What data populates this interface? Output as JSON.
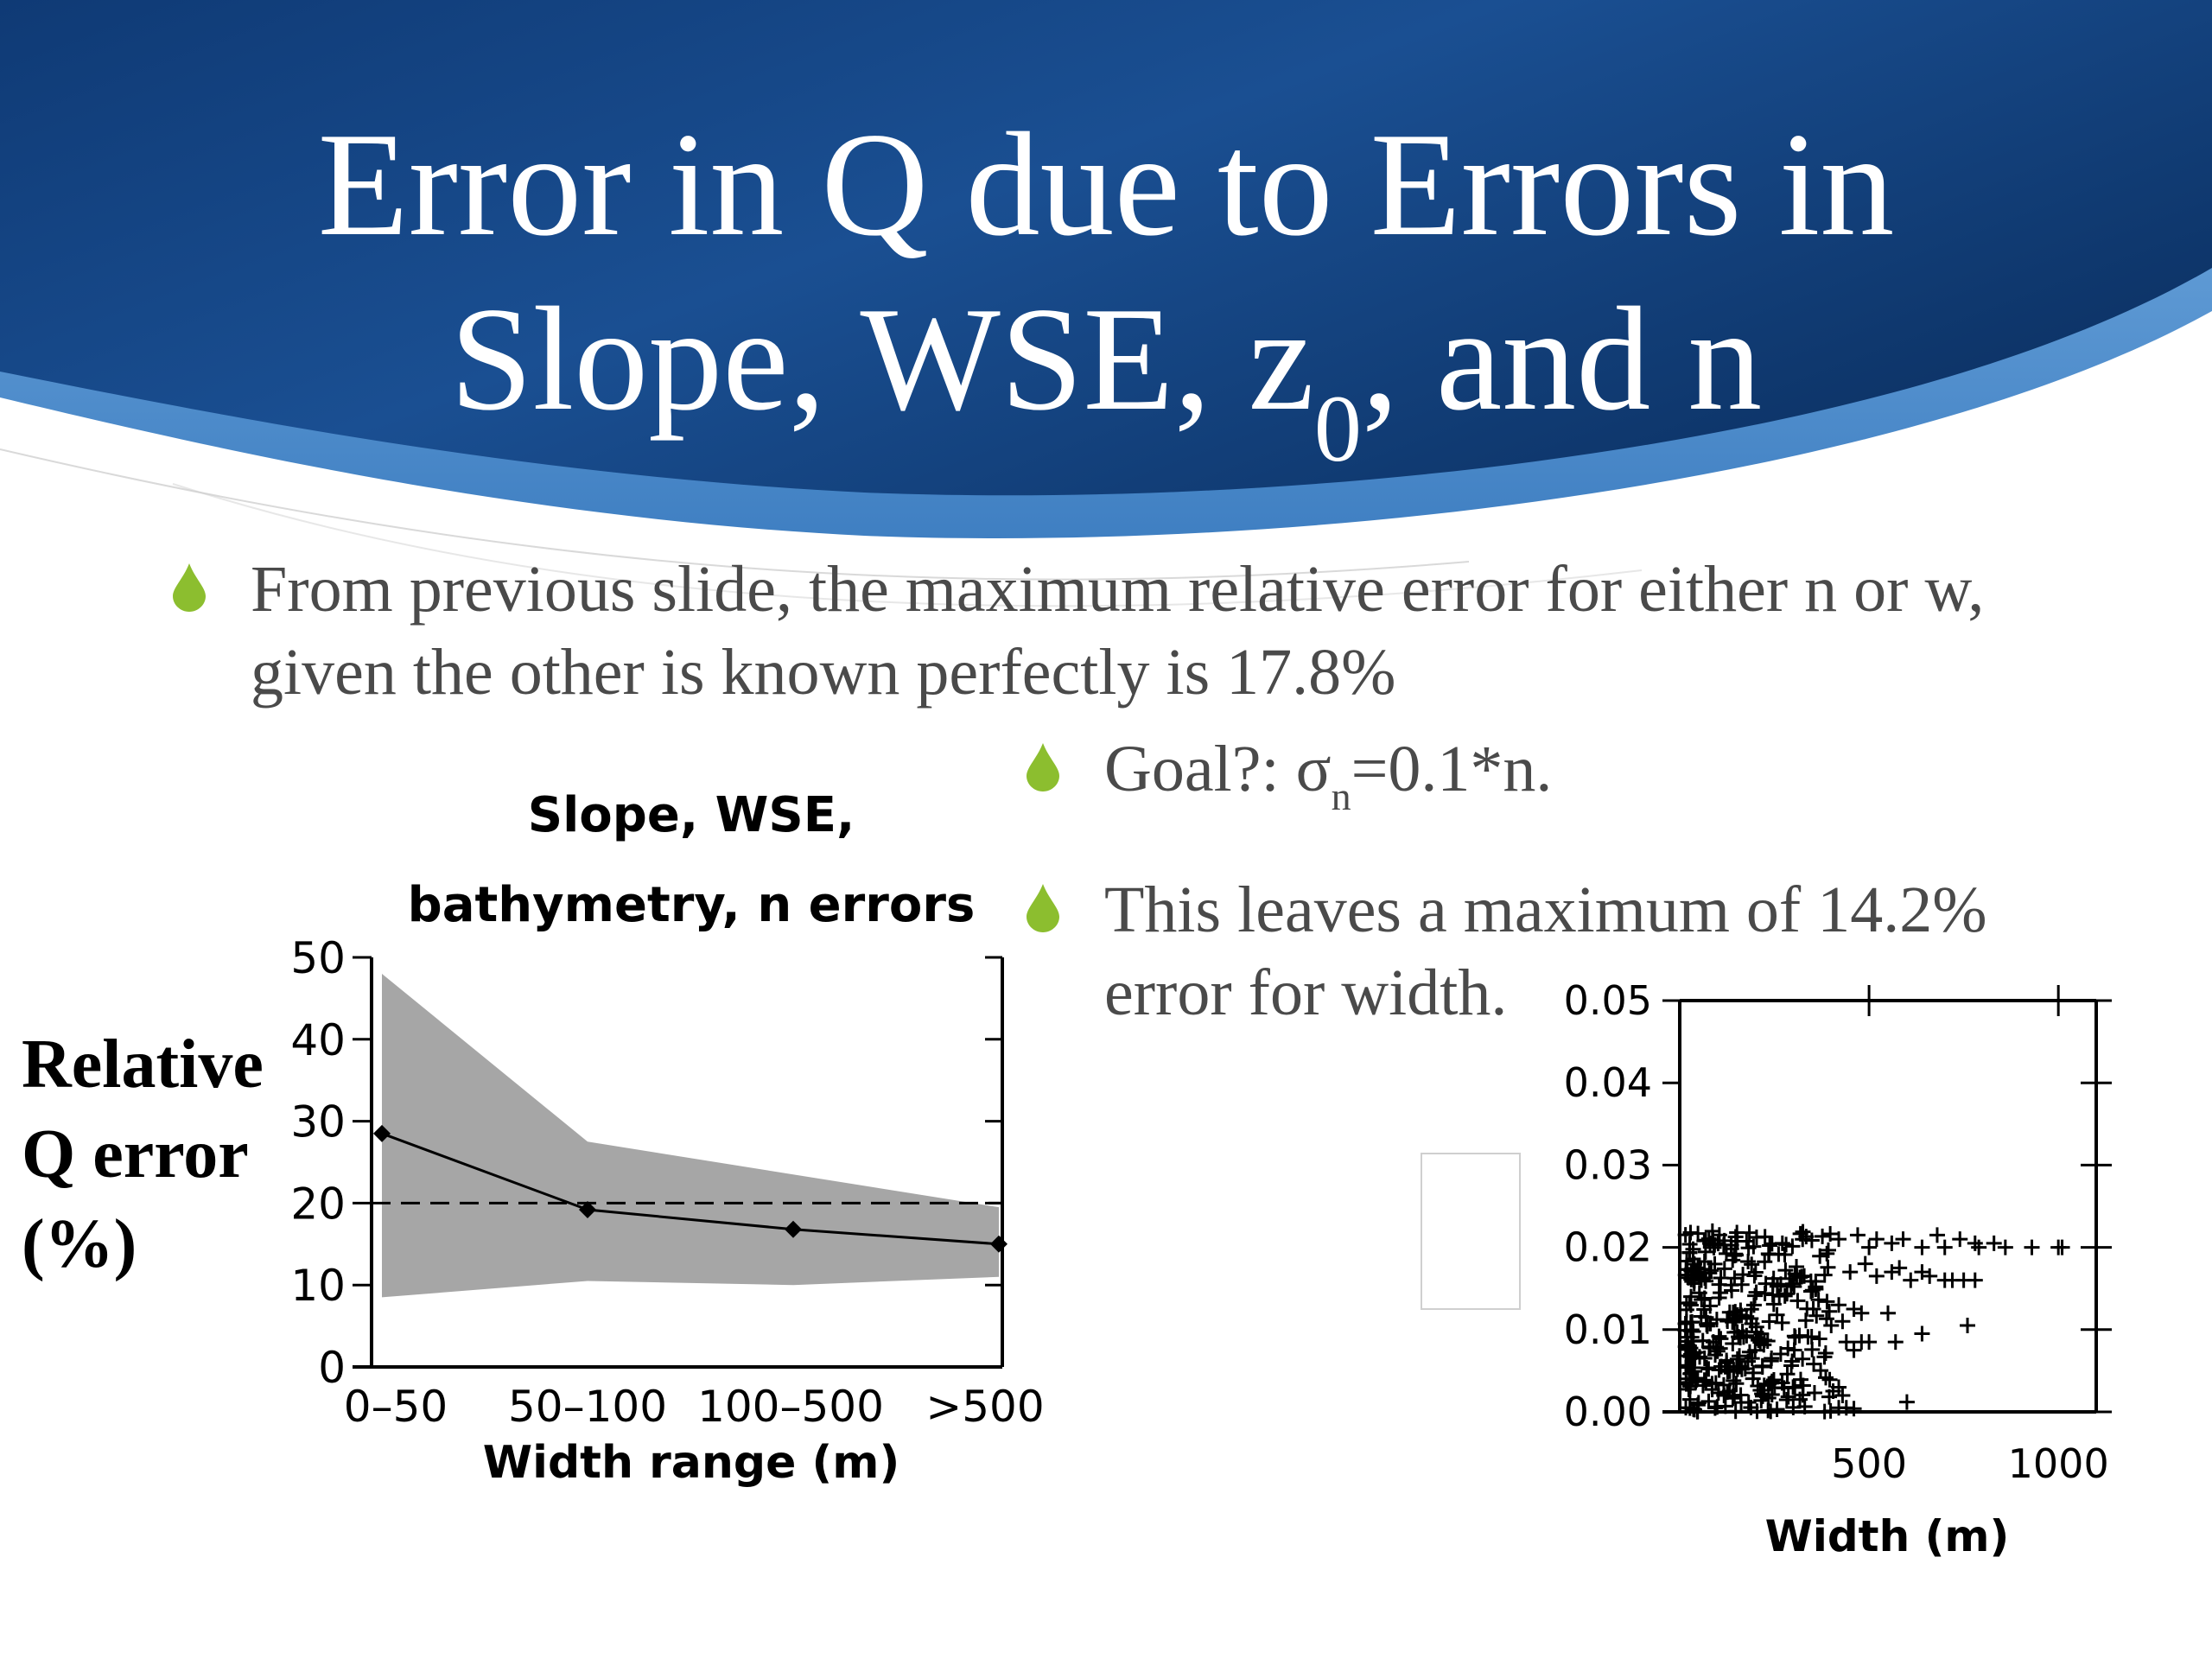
{
  "slide": {
    "title_line1": "Error in Q due to Errors in",
    "title_line2_prefix": "Slope, WSE, z",
    "title_line2_sub": "0",
    "title_line2_suffix": ", and n"
  },
  "bullets": {
    "b1_line1": "From previous slide, the maximum relative error for either n or w,",
    "b1_line2": "given the other is known perfectly is 17.8%",
    "b2_prefix": "Goal?: σ",
    "b2_sub": "n",
    "b2_suffix": "=0.1*n.",
    "b3_line1": "This leaves a maximum of 14.2%",
    "b3_line2": "error for width."
  },
  "left_label": {
    "line1": "Relative",
    "line2": "Q error",
    "line3": "(%)"
  },
  "colors": {
    "accent_bullet": "#8cbe2f",
    "banner_dark": "#133f7e",
    "banner_light": "#5a9bd6",
    "band_gray": "#a6a6a6"
  },
  "chart_data": [
    {
      "type": "line",
      "title_line1": "Slope, WSE,",
      "title_line2": "bathymetry, n errors",
      "xlabel": "Width range (m)",
      "ylabel": "",
      "categories": [
        "0–50",
        "50–100",
        "100–500",
        ">500"
      ],
      "ylim": [
        0,
        50
      ],
      "yticks": [
        0,
        10,
        20,
        30,
        40,
        50
      ],
      "series": [
        {
          "values": [
            28.5,
            19.2,
            16.8,
            15.0
          ]
        }
      ],
      "band": {
        "upper": [
          48,
          27.5,
          23.5,
          19.5
        ],
        "lower": [
          8.5,
          10.5,
          10,
          11
        ]
      },
      "reference_line": {
        "y": 20,
        "style": "dashed"
      },
      "grid": false
    },
    {
      "type": "scatter",
      "xlabel": "Width (m)",
      "ylabel": "",
      "xlim": [
        0,
        1100
      ],
      "ylim": [
        0,
        0.05
      ],
      "xticks": [
        500,
        1000
      ],
      "yticks": [
        "0.00",
        "0.01",
        "0.02",
        "0.03",
        "0.04",
        "0.05"
      ],
      "points": [
        [
          420,
          0.021
        ],
        [
          470,
          0.0215
        ],
        [
          500,
          0.02
        ],
        [
          520,
          0.021
        ],
        [
          560,
          0.0205
        ],
        [
          590,
          0.021
        ],
        [
          640,
          0.02
        ],
        [
          680,
          0.0215
        ],
        [
          700,
          0.02
        ],
        [
          740,
          0.021
        ],
        [
          780,
          0.0205
        ],
        [
          790,
          0.02
        ],
        [
          830,
          0.0205
        ],
        [
          860,
          0.02
        ],
        [
          930,
          0.02
        ],
        [
          1000,
          0.02
        ],
        [
          1010,
          0.02
        ],
        [
          450,
          0.017
        ],
        [
          490,
          0.018
        ],
        [
          520,
          0.0165
        ],
        [
          560,
          0.017
        ],
        [
          580,
          0.0175
        ],
        [
          610,
          0.016
        ],
        [
          640,
          0.017
        ],
        [
          660,
          0.0165
        ],
        [
          700,
          0.016
        ],
        [
          720,
          0.016
        ],
        [
          750,
          0.016
        ],
        [
          780,
          0.016
        ],
        [
          420,
          0.013
        ],
        [
          460,
          0.0125
        ],
        [
          480,
          0.012
        ],
        [
          500,
          0.0085
        ],
        [
          550,
          0.012
        ],
        [
          570,
          0.0085
        ],
        [
          640,
          0.0095
        ],
        [
          760,
          0.0105
        ],
        [
          600,
          0.0012
        ],
        [
          400,
          0.0105
        ],
        [
          430,
          0.011
        ],
        [
          440,
          0.0085
        ],
        [
          460,
          0.0075
        ],
        [
          480,
          0.0085
        ],
        [
          420,
          0.0005
        ],
        [
          440,
          0.0005
        ],
        [
          460,
          0.0004
        ],
        [
          420,
          0.003
        ],
        [
          430,
          0.002
        ]
      ],
      "dense_region": {
        "x_range": [
          15,
          410
        ],
        "y_range": [
          0.0,
          0.022
        ]
      },
      "grid": false
    }
  ]
}
